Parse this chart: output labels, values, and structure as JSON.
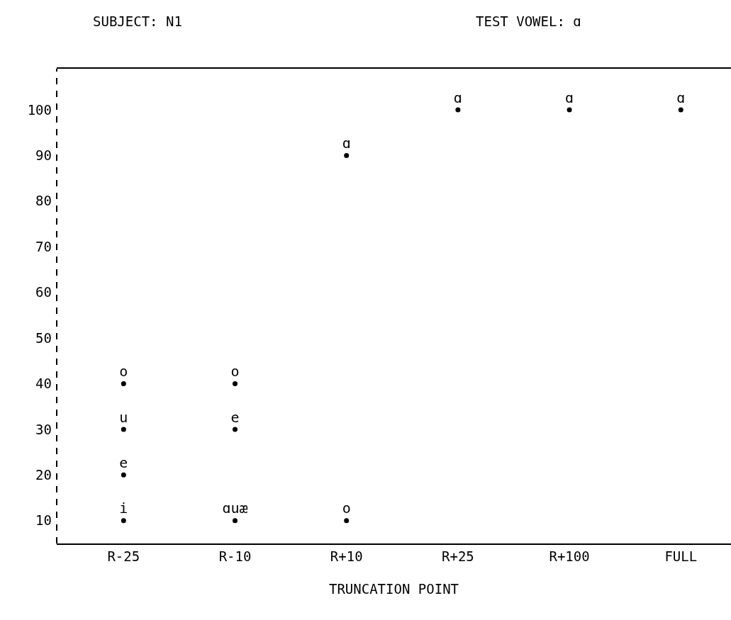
{
  "chart_data": {
    "type": "scatter",
    "title": "SUBJECT: N1",
    "subtitle": "TEST VOWEL: ɑ",
    "xlabel": "TRUNCATION POINT",
    "categories": [
      "R-25",
      "R-10",
      "R+10",
      "R+25",
      "R+100",
      "FULL"
    ],
    "series": [
      {
        "color": "#000000",
        "x": [
          "R-25",
          "R-25",
          "R-25",
          "R-25",
          "R-10",
          "R-10",
          "R-10",
          "R+10",
          "R+10",
          "R+25",
          "R+100",
          "FULL"
        ],
        "values": [
          40,
          30,
          20,
          10,
          40,
          30,
          10,
          90,
          10,
          100,
          100,
          100
        ],
        "value_labels": [
          "o",
          "u",
          "e",
          "i",
          "o",
          "e",
          "ɑuæ",
          "ɑ",
          "o",
          "ɑ",
          "ɑ",
          "ɑ"
        ]
      }
    ],
    "ylim": [
      5,
      109
    ],
    "yticks": [
      10,
      20,
      30,
      40,
      50,
      60,
      70,
      80,
      90,
      100
    ],
    "grid": false,
    "marker": "circle"
  }
}
